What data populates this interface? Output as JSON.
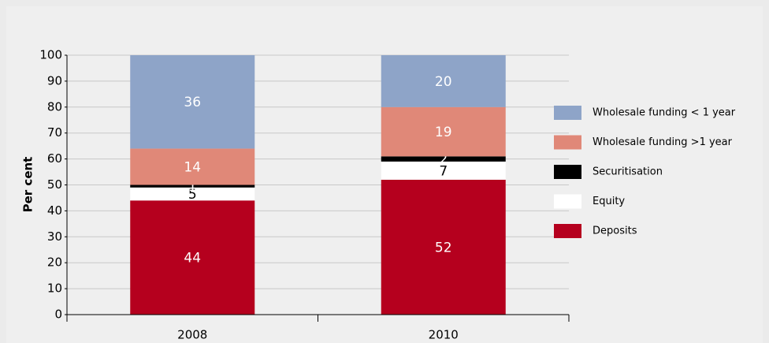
{
  "chart_data": {
    "type": "stacked_bar",
    "categories": [
      "2008",
      "2010"
    ],
    "y_label": "Per cent",
    "series": [
      {
        "name": "Deposits",
        "color": "#b5001e",
        "values": [
          44,
          52
        ]
      },
      {
        "name": "Equity",
        "color": "#ffffff",
        "values": [
          5,
          7
        ]
      },
      {
        "name": "Securitisation",
        "color": "#000000",
        "values": [
          1,
          2
        ]
      },
      {
        "name": "Wholesale funding >1 year",
        "color": "#e08878",
        "values": [
          14,
          19
        ]
      },
      {
        "name": "Wholesale funding < 1 year",
        "color": "#8ea4c8",
        "values": [
          36,
          20
        ]
      }
    ],
    "ylim": [
      0,
      100
    ],
    "yticks": [
      0,
      10,
      20,
      30,
      40,
      50,
      60,
      70,
      80,
      90,
      100
    ],
    "grid": true,
    "legend": "right"
  }
}
